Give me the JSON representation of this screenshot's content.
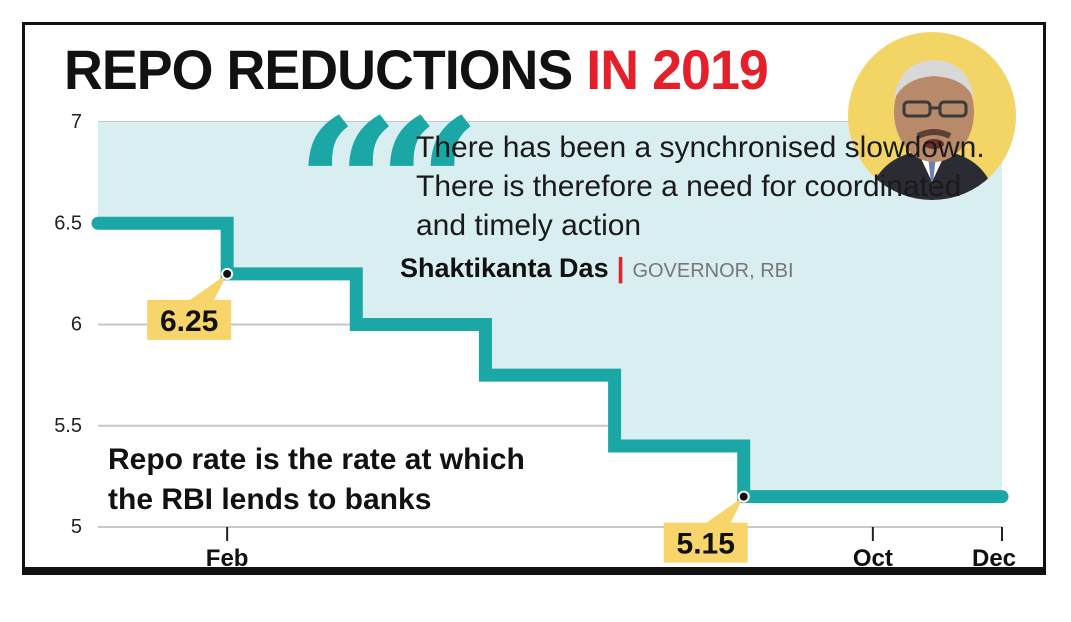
{
  "title": {
    "part1": "REPO REDUCTIONS",
    "part2": "IN 2019"
  },
  "quote": {
    "text": "There has been a synchronised slowdown. There is therefore a need for coordinated and timely action",
    "speaker": "Shaktikanta Das",
    "role": "GOVERNOR, RBI"
  },
  "note": "Repo rate is the rate at which the RBI lends to banks",
  "colors": {
    "teal": "#1ba7a5",
    "fill": "#d9eef0",
    "accent": "#e4202a",
    "label_bg": "#f7d56a"
  },
  "chart_data": {
    "type": "step-line",
    "title": "REPO REDUCTIONS IN 2019",
    "y_ticks": [
      "7",
      "6.5",
      "6",
      "5.5",
      "5"
    ],
    "ylim": [
      5,
      7
    ],
    "x_ticks": [
      {
        "label": "Feb",
        "x": 1
      },
      {
        "label": "Oct",
        "x": 6
      },
      {
        "label": "Dec",
        "x": 7
      }
    ],
    "xlim": [
      0,
      7
    ],
    "series": [
      {
        "name": "Repo rate",
        "points": [
          [
            0,
            6.5
          ],
          [
            1,
            6.25
          ],
          [
            2,
            6.0
          ],
          [
            3,
            5.75
          ],
          [
            4,
            5.4
          ],
          [
            5,
            5.15
          ],
          [
            7,
            5.15
          ]
        ]
      }
    ],
    "annotations": [
      {
        "label": "6.25",
        "x": 1,
        "value": 6.25
      },
      {
        "label": "5.15",
        "x": 5,
        "value": 5.15
      }
    ]
  }
}
